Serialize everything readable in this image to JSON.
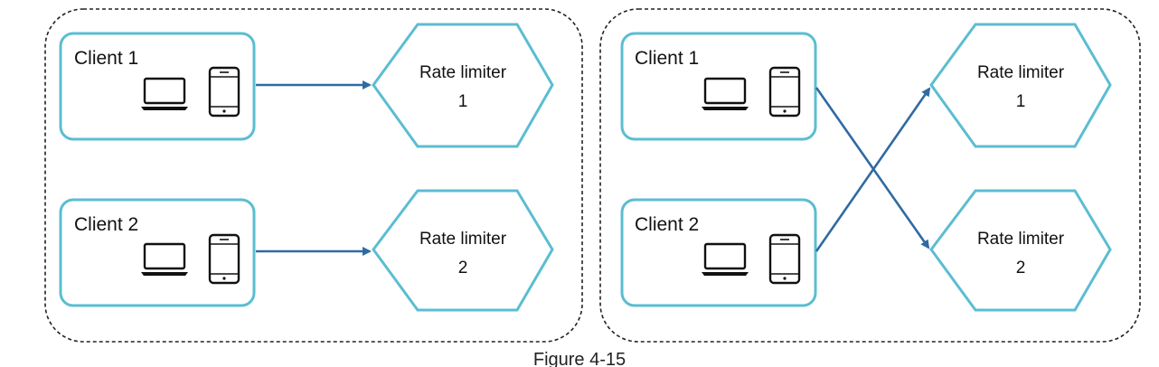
{
  "colors": {
    "box_stroke": "#5bbdd1",
    "arrow": "#2f6aa3",
    "group_border": "#222222",
    "text": "#111111"
  },
  "left_group": {
    "client_1": {
      "label": "Client 1",
      "icons": [
        "laptop-icon",
        "phone-icon"
      ]
    },
    "client_2": {
      "label": "Client 2",
      "icons": [
        "laptop-icon",
        "phone-icon"
      ]
    },
    "rate_limiter_1": {
      "line1": "Rate limiter",
      "line2": "1"
    },
    "rate_limiter_2": {
      "line1": "Rate limiter",
      "line2": "2"
    }
  },
  "right_group": {
    "client_1": {
      "label": "Client 1",
      "icons": [
        "laptop-icon",
        "phone-icon"
      ]
    },
    "client_2": {
      "label": "Client 2",
      "icons": [
        "laptop-icon",
        "phone-icon"
      ]
    },
    "rate_limiter_1": {
      "line1": "Rate limiter",
      "line2": "1"
    },
    "rate_limiter_2": {
      "line1": "Rate limiter",
      "line2": "2"
    }
  },
  "caption": "Figure 4-15"
}
